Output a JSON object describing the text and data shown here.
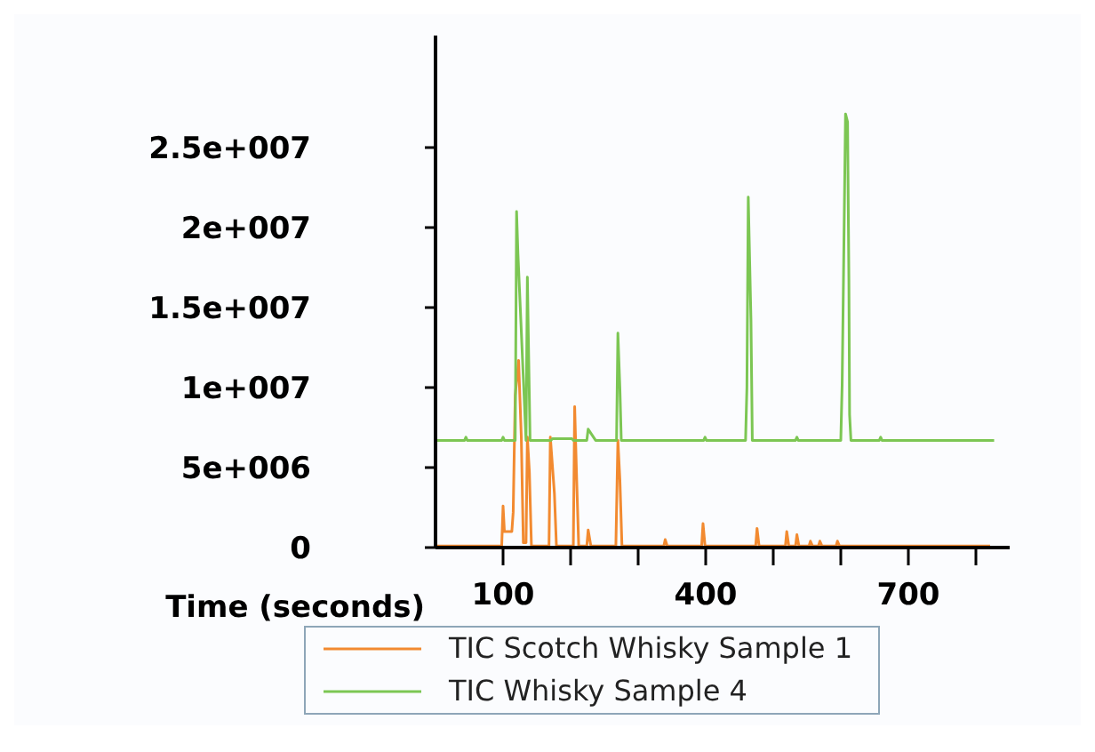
{
  "chart_data": {
    "type": "line",
    "xlabel": "Time (seconds)",
    "xlim": [
      0,
      850
    ],
    "xticks": [
      {
        "value": 100,
        "label": "100"
      },
      {
        "value": 200,
        "label": null
      },
      {
        "value": 300,
        "label": null
      },
      {
        "value": 400,
        "label": "400"
      },
      {
        "value": 500,
        "label": null
      },
      {
        "value": 600,
        "label": null
      },
      {
        "value": 700,
        "label": "700"
      },
      {
        "value": 800,
        "label": null
      }
    ],
    "ylim": [
      0,
      32000000
    ],
    "yticks": [
      {
        "value": 0,
        "label": "0"
      },
      {
        "value": 5000000,
        "label": "5e+006"
      },
      {
        "value": 10000000,
        "label": "1e+007"
      },
      {
        "value": 15000000,
        "label": "1.5e+007"
      },
      {
        "value": 20000000,
        "label": "2e+007"
      },
      {
        "value": 25000000,
        "label": "2.5e+007"
      }
    ],
    "grid": false,
    "legend": "bottom",
    "marker": "none",
    "line_style": "solid",
    "series": [
      {
        "name": "TIC Scotch Whisky Sample 1",
        "color": "#f28a30",
        "x": [
          0,
          98,
          100,
          102,
          113,
          115,
          118,
          123,
          127,
          130,
          134,
          136,
          139,
          142,
          168,
          170,
          176,
          179,
          204,
          206,
          209,
          212,
          224,
          226,
          230,
          267,
          270,
          273,
          276,
          338,
          340,
          343,
          394,
          396,
          399,
          474,
          476,
          479,
          518,
          520,
          523,
          533,
          535,
          538,
          553,
          555,
          558,
          567,
          569,
          572,
          593,
          595,
          598,
          821
        ],
        "values": [
          100000,
          100000,
          2600000,
          1000000,
          1000000,
          2200000,
          9500000,
          11700000,
          6900000,
          300000,
          300000,
          6900000,
          4700000,
          100000,
          100000,
          6900000,
          3400000,
          100000,
          100000,
          8800000,
          4200000,
          100000,
          100000,
          1100000,
          100000,
          100000,
          6700000,
          4200000,
          100000,
          100000,
          500000,
          100000,
          100000,
          1500000,
          100000,
          100000,
          1200000,
          100000,
          100000,
          1000000,
          100000,
          100000,
          800000,
          100000,
          100000,
          400000,
          100000,
          100000,
          400000,
          100000,
          100000,
          400000,
          100000,
          100000
        ]
      },
      {
        "name": "TIC Whisky Sample 4",
        "color": "#7cc653",
        "x": [
          0,
          43,
          45,
          47,
          98,
          100,
          102,
          118,
          120,
          122,
          134,
          136,
          138,
          140,
          171,
          173,
          202,
          204,
          224,
          226,
          237,
          239,
          268,
          270,
          273,
          275,
          397,
          399,
          401,
          459,
          461,
          463,
          467,
          469,
          533,
          535,
          537,
          600,
          602,
          607,
          610,
          612,
          613,
          615,
          657,
          659,
          661,
          827
        ],
        "values": [
          6700000,
          6700000,
          6900000,
          6700000,
          6700000,
          6900000,
          6700000,
          6700000,
          21000000,
          18400000,
          6700000,
          16900000,
          11700000,
          6700000,
          6700000,
          6800000,
          6800000,
          6700000,
          6700000,
          7400000,
          6700000,
          6700000,
          6700000,
          13400000,
          9900000,
          6700000,
          6700000,
          6900000,
          6700000,
          6700000,
          10000000,
          21900000,
          14200000,
          6700000,
          6700000,
          6900000,
          6700000,
          6700000,
          10200000,
          27100000,
          26600000,
          16600000,
          8300000,
          6700000,
          6700000,
          6900000,
          6700000,
          6700000
        ]
      }
    ]
  }
}
